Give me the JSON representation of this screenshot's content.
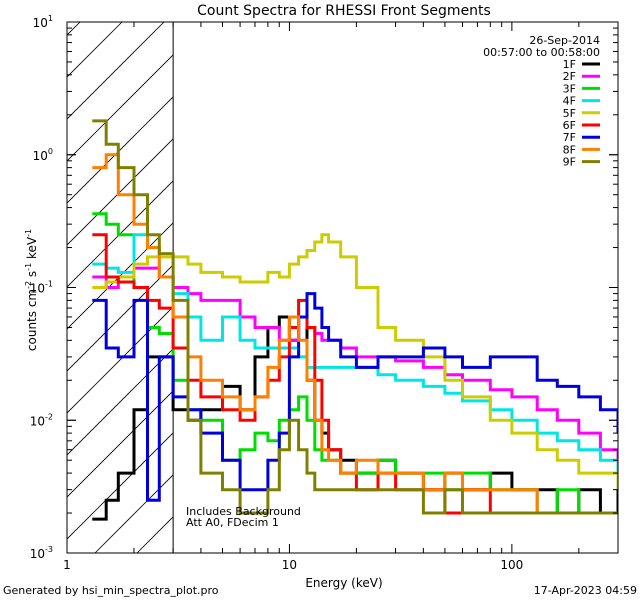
{
  "chart_data": {
    "type": "line",
    "title": "Count Spectra for RHESSI Front Segments",
    "date": "26-Sep-2014",
    "time_range": "00:57:00 to 00:58:00",
    "xlabel": "Energy (keV)",
    "ylabel_parts": [
      "counts cm",
      "-2",
      " s",
      "-1",
      " keV",
      "-1"
    ],
    "x_scale": "log",
    "y_scale": "log",
    "xlim": [
      1,
      300
    ],
    "ylim": [
      0.001,
      10
    ],
    "x_ticks": [
      {
        "v": 1,
        "label": "1"
      },
      {
        "v": 10,
        "label": "10"
      },
      {
        "v": 100,
        "label": "100"
      }
    ],
    "y_ticks": [
      {
        "v": 10,
        "base": "10",
        "exp": "1"
      },
      {
        "v": 1,
        "base": "10",
        "exp": "0"
      },
      {
        "v": 0.1,
        "base": "10",
        "exp": "-1"
      },
      {
        "v": 0.01,
        "base": "10",
        "exp": "-2"
      },
      {
        "v": 0.001,
        "base": "10",
        "exp": "-3"
      }
    ],
    "hatched_region": [
      1,
      3
    ],
    "annotations": [
      "Includes Background",
      "Att A0, FDecim 1"
    ],
    "legend_position": "top-right",
    "series": [
      {
        "name": "1F",
        "color": "#000000",
        "x": [
          1.3,
          1.5,
          1.7,
          2,
          2.3,
          2.6,
          3,
          3.5,
          4,
          5,
          6,
          7,
          8,
          9,
          10,
          11,
          12,
          13,
          14,
          15,
          17,
          20,
          25,
          30,
          40,
          50,
          60,
          80,
          100,
          130,
          160,
          200,
          250,
          300
        ],
        "y": [
          0.0018,
          0.0025,
          0.004,
          0.012,
          0.03,
          0.03,
          0.012,
          0.01,
          0.012,
          0.018,
          0.012,
          0.03,
          0.05,
          0.06,
          0.04,
          0.06,
          0.02,
          0.01,
          0.008,
          0.006,
          0.005,
          0.004,
          0.005,
          0.004,
          0.003,
          0.004,
          0.003,
          0.004,
          0.003,
          0.003,
          0.002,
          0.003,
          0.002,
          0.003
        ]
      },
      {
        "name": "2F",
        "color": "#ff00ff",
        "x": [
          1.3,
          1.5,
          1.7,
          2,
          2.3,
          2.6,
          3,
          3.5,
          4,
          5,
          6,
          7,
          8,
          9,
          10,
          11,
          12,
          13,
          14,
          15,
          17,
          20,
          25,
          30,
          40,
          50,
          60,
          80,
          100,
          130,
          160,
          200,
          250,
          300
        ],
        "y": [
          0.12,
          0.1,
          0.11,
          0.14,
          0.14,
          0.12,
          0.1,
          0.09,
          0.08,
          0.08,
          0.06,
          0.05,
          0.05,
          0.04,
          0.04,
          0.06,
          0.05,
          0.045,
          0.04,
          0.04,
          0.035,
          0.03,
          0.03,
          0.028,
          0.025,
          0.022,
          0.02,
          0.017,
          0.015,
          0.012,
          0.01,
          0.008,
          0.006,
          0.004
        ]
      },
      {
        "name": "3F",
        "color": "#00dd00",
        "x": [
          1.3,
          1.5,
          1.7,
          2,
          2.3,
          2.6,
          3,
          3.5,
          4,
          5,
          6,
          7,
          8,
          9,
          10,
          11,
          12,
          13,
          14,
          15,
          17,
          20,
          25,
          30,
          40,
          50,
          60,
          80,
          100,
          130,
          160,
          200,
          250,
          300
        ],
        "y": [
          0.36,
          0.3,
          0.25,
          0.1,
          0.05,
          0.045,
          0.02,
          0.012,
          0.01,
          0.005,
          0.006,
          0.008,
          0.007,
          0.01,
          0.012,
          0.015,
          0.01,
          0.006,
          0.005,
          0.005,
          0.004,
          0.004,
          0.005,
          0.004,
          0.004,
          0.003,
          0.004,
          0.003,
          0.003,
          0.002,
          0.003,
          0.002,
          0.002,
          0.002
        ]
      },
      {
        "name": "4F",
        "color": "#00e5e5",
        "x": [
          1.3,
          1.5,
          1.7,
          2,
          2.3,
          2.6,
          3,
          3.5,
          4,
          5,
          6,
          7,
          8,
          9,
          10,
          11,
          12,
          13,
          14,
          15,
          17,
          20,
          25,
          30,
          40,
          50,
          60,
          80,
          100,
          130,
          160,
          200,
          250,
          300
        ],
        "y": [
          0.15,
          0.14,
          0.13,
          0.25,
          0.2,
          0.12,
          0.09,
          0.06,
          0.04,
          0.06,
          0.04,
          0.035,
          0.035,
          0.035,
          0.035,
          0.03,
          0.025,
          0.025,
          0.025,
          0.025,
          0.025,
          0.025,
          0.022,
          0.02,
          0.018,
          0.016,
          0.014,
          0.012,
          0.01,
          0.008,
          0.007,
          0.006,
          0.005,
          0.004
        ]
      },
      {
        "name": "5F",
        "color": "#cccc00",
        "x": [
          1.3,
          1.5,
          1.7,
          2,
          2.3,
          2.6,
          3,
          3.5,
          4,
          5,
          6,
          7,
          8,
          9,
          10,
          11,
          12,
          13,
          14,
          15,
          17,
          20,
          25,
          30,
          40,
          50,
          60,
          80,
          100,
          130,
          160,
          200,
          250,
          300
        ],
        "y": [
          0.1,
          0.11,
          0.12,
          0.15,
          0.17,
          0.17,
          0.17,
          0.15,
          0.13,
          0.12,
          0.11,
          0.11,
          0.13,
          0.12,
          0.15,
          0.17,
          0.19,
          0.22,
          0.25,
          0.22,
          0.17,
          0.1,
          0.05,
          0.04,
          0.03,
          0.02,
          0.015,
          0.01,
          0.008,
          0.006,
          0.005,
          0.004,
          0.004,
          0.003
        ]
      },
      {
        "name": "6F",
        "color": "#ff0000",
        "x": [
          1.3,
          1.5,
          1.7,
          2,
          2.3,
          2.6,
          3,
          3.5,
          4,
          5,
          6,
          7,
          8,
          9,
          10,
          11,
          12,
          13,
          14,
          15,
          17,
          20,
          25,
          30,
          40,
          50,
          60,
          80,
          100,
          130,
          160,
          200,
          250,
          300
        ],
        "y": [
          0.25,
          0.12,
          0.11,
          0.1,
          0.08,
          0.07,
          0.035,
          0.02,
          0.015,
          0.012,
          0.01,
          0.015,
          0.02,
          0.03,
          0.05,
          0.08,
          0.05,
          0.02,
          0.01,
          0.006,
          0.004,
          0.003,
          0.004,
          0.003,
          0.003,
          0.002,
          0.003,
          0.002,
          0.002,
          0.002,
          0.002,
          0.002,
          0.002,
          0.002
        ]
      },
      {
        "name": "7F",
        "color": "#0000dd",
        "x": [
          1.3,
          1.5,
          1.7,
          2,
          2.3,
          2.6,
          3,
          3.5,
          4,
          5,
          6,
          7,
          8,
          9,
          10,
          11,
          12,
          13,
          14,
          15,
          17,
          20,
          25,
          30,
          40,
          50,
          60,
          80,
          100,
          130,
          160,
          200,
          250,
          300
        ],
        "y": [
          0.08,
          0.035,
          0.03,
          0.08,
          0.0025,
          0.03,
          0.015,
          0.012,
          0.008,
          0.005,
          0.003,
          0.003,
          0.005,
          0.008,
          0.03,
          0.06,
          0.09,
          0.07,
          0.05,
          0.04,
          0.03,
          0.025,
          0.03,
          0.03,
          0.035,
          0.03,
          0.025,
          0.03,
          0.03,
          0.02,
          0.018,
          0.015,
          0.012,
          0.008
        ]
      },
      {
        "name": "8F",
        "color": "#ff7f00",
        "x": [
          1.3,
          1.5,
          1.7,
          2,
          2.3,
          2.6,
          3,
          3.5,
          4,
          5,
          6,
          7,
          8,
          9,
          10,
          11,
          12,
          13,
          14,
          15,
          17,
          20,
          25,
          30,
          40,
          50,
          60,
          80,
          100,
          130,
          160,
          200,
          250,
          300
        ],
        "y": [
          0.8,
          1.0,
          0.5,
          0.3,
          0.2,
          0.12,
          0.06,
          0.03,
          0.02,
          0.015,
          0.012,
          0.015,
          0.025,
          0.04,
          0.06,
          0.04,
          0.02,
          0.01,
          0.006,
          0.005,
          0.004,
          0.005,
          0.004,
          0.004,
          0.003,
          0.004,
          0.003,
          0.003,
          0.003,
          0.002,
          0.002,
          0.002,
          0.002,
          0.002
        ]
      },
      {
        "name": "9F",
        "color": "#808000",
        "x": [
          1.3,
          1.5,
          1.7,
          2,
          2.3,
          2.6,
          3,
          3.5,
          4,
          5,
          6,
          7,
          8,
          9,
          10,
          11,
          12,
          13,
          14,
          15,
          17,
          20,
          25,
          30,
          40,
          50,
          60,
          80,
          100,
          130,
          160,
          200,
          250,
          300
        ],
        "y": [
          1.8,
          1.2,
          0.8,
          0.5,
          0.25,
          0.18,
          0.08,
          0.01,
          0.004,
          0.003,
          0.002,
          0.002,
          0.003,
          0.006,
          0.01,
          0.006,
          0.004,
          0.003,
          0.003,
          0.003,
          0.003,
          0.003,
          0.003,
          0.003,
          0.002,
          0.003,
          0.002,
          0.002,
          0.002,
          0.002,
          0.002,
          0.002,
          0.002,
          0.002
        ]
      }
    ]
  },
  "footer": {
    "left": "Generated by hsi_min_spectra_plot.pro",
    "right": "17-Apr-2023 04:59"
  }
}
